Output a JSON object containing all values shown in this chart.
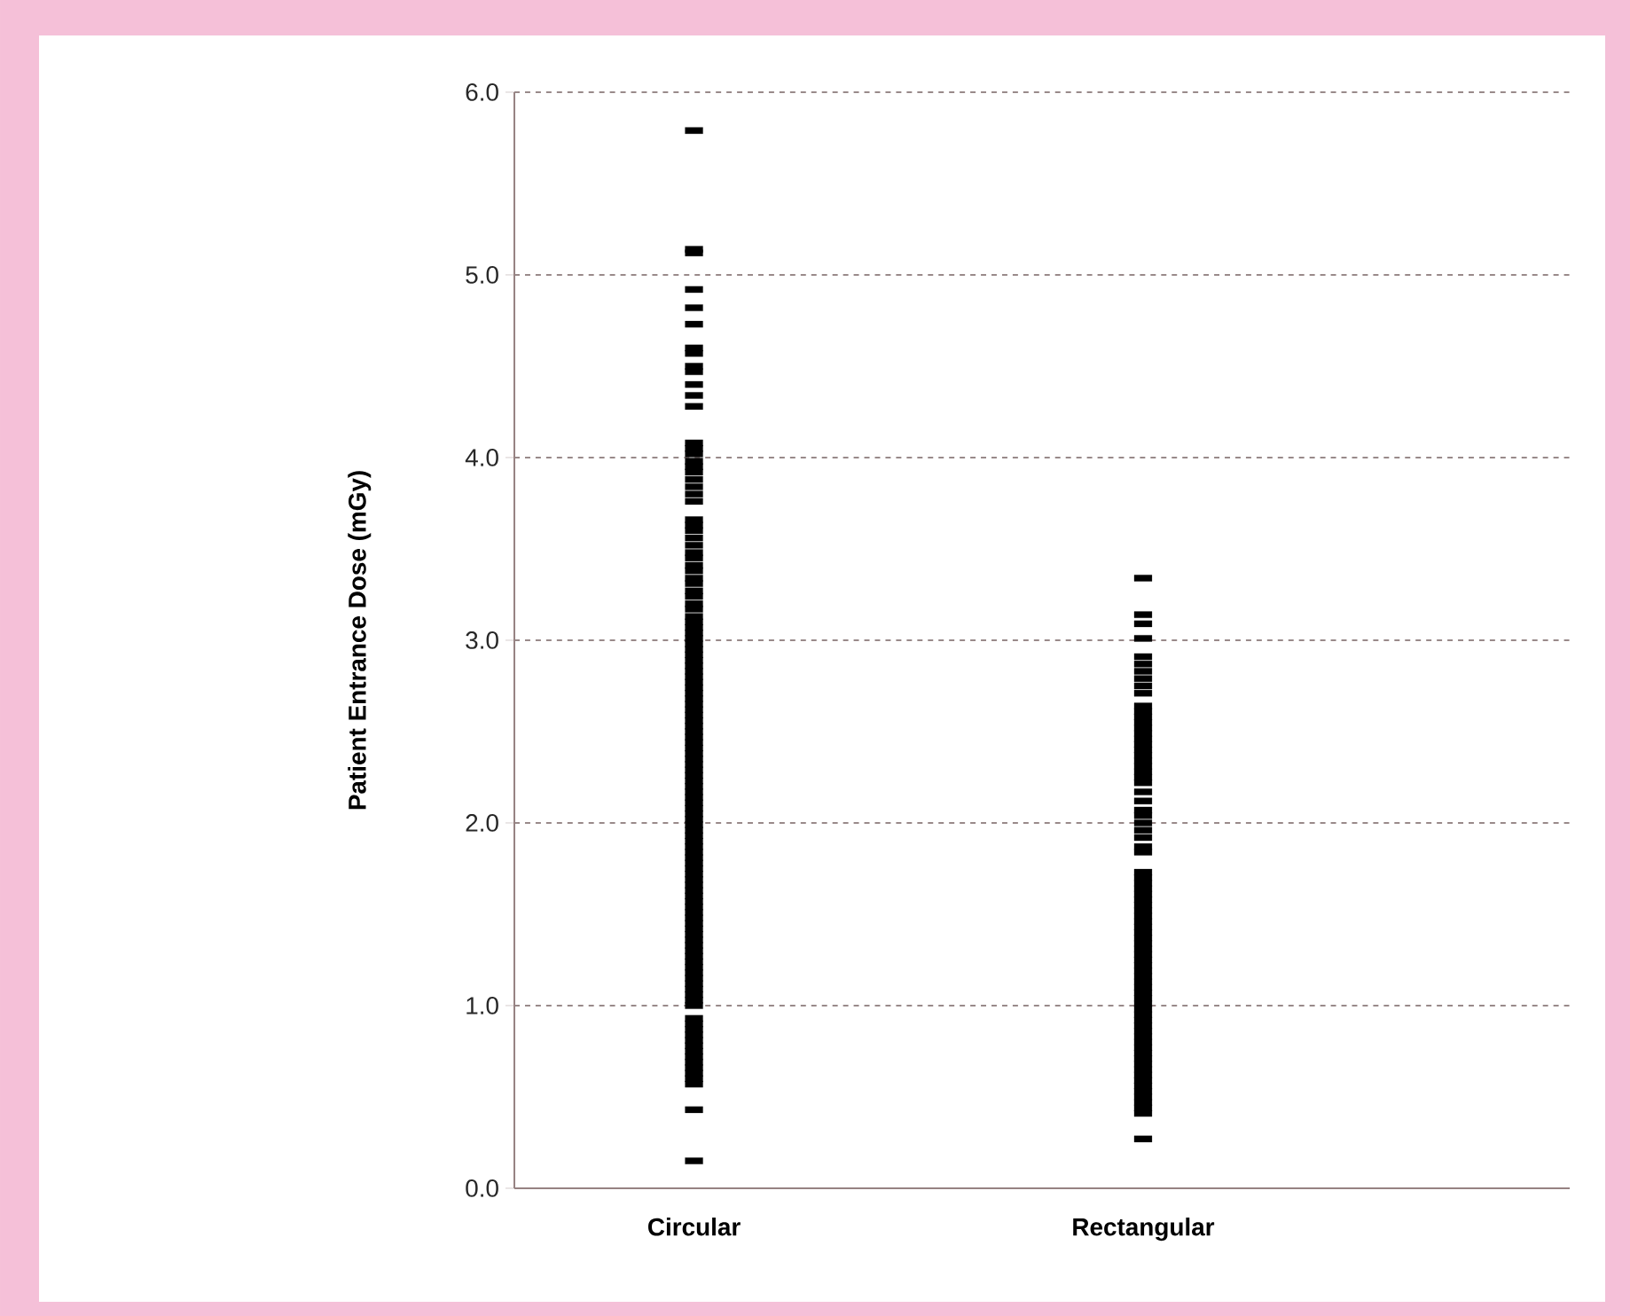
{
  "chart_data": {
    "type": "scatter",
    "ylabel": "Patient Entrance Dose (mGy)",
    "categories": [
      "Circular",
      "Rectangular"
    ],
    "ylim": [
      0,
      6
    ],
    "yticks": [
      {
        "value": 0,
        "label": "0.0"
      },
      {
        "value": 1,
        "label": "1.0"
      },
      {
        "value": 2,
        "label": "2.0"
      },
      {
        "value": 3,
        "label": "3.0"
      },
      {
        "value": 4,
        "label": "4.0"
      },
      {
        "value": 5,
        "label": "5.0"
      },
      {
        "value": 6,
        "label": "6.0"
      }
    ],
    "grid": "y",
    "series": [
      {
        "color": "#000000",
        "x": [
          "Circular",
          "Circular",
          "Circular",
          "Circular",
          "Circular",
          "Circular",
          "Circular",
          "Circular",
          "Circular",
          "Circular",
          "Circular",
          "Circular",
          "Circular",
          "Circular",
          "Circular",
          "Circular",
          "Circular",
          "Circular",
          "Circular",
          "Circular",
          "Circular",
          "Circular",
          "Circular",
          "Circular",
          "Circular",
          "Circular",
          "Circular",
          "Circular",
          "Circular",
          "Circular",
          "Circular",
          "Circular",
          "Circular",
          "Circular",
          "Circular",
          "Circular",
          "Circular",
          "Circular",
          "Circular",
          "Circular",
          "Circular",
          "Circular",
          "Circular",
          "Circular",
          "Circular",
          "Circular",
          "Circular",
          "Circular",
          "Circular",
          "Circular",
          "Circular",
          "Circular",
          "Circular",
          "Circular",
          "Circular",
          "Circular",
          "Circular",
          "Circular",
          "Circular",
          "Circular",
          "Circular",
          "Circular",
          "Circular",
          "Circular",
          "Circular",
          "Circular",
          "Circular",
          "Circular",
          "Circular",
          "Circular",
          "Circular",
          "Circular",
          "Circular",
          "Circular",
          "Circular",
          "Circular",
          "Circular",
          "Circular",
          "Circular",
          "Circular",
          "Circular",
          "Circular",
          "Circular",
          "Circular",
          "Circular",
          "Circular",
          "Circular",
          "Circular",
          "Circular",
          "Circular",
          "Circular",
          "Circular",
          "Circular",
          "Circular",
          "Circular",
          "Circular",
          "Circular",
          "Circular",
          "Circular",
          "Circular",
          "Circular",
          "Circular",
          "Circular",
          "Circular",
          "Circular",
          "Circular",
          "Circular",
          "Circular",
          "Circular",
          "Circular",
          "Circular",
          "Circular",
          "Circular",
          "Circular",
          "Circular",
          "Circular",
          "Circular",
          "Circular",
          "Circular",
          "Circular",
          "Circular",
          "Circular",
          "Circular",
          "Circular",
          "Circular"
        ],
        "values": [
          5.79,
          5.14,
          5.12,
          4.92,
          4.82,
          4.73,
          4.6,
          4.57,
          4.5,
          4.47,
          4.4,
          4.34,
          4.28,
          4.08,
          4.05,
          4.02,
          3.98,
          3.95,
          3.92,
          3.88,
          3.84,
          3.8,
          3.76,
          3.66,
          3.63,
          3.6,
          3.56,
          3.52,
          3.48,
          3.45,
          3.41,
          3.38,
          3.34,
          3.31,
          3.27,
          3.24,
          3.2,
          3.17,
          3.13,
          3.1,
          3.07,
          3.04,
          3.01,
          2.98,
          2.95,
          2.92,
          2.89,
          2.86,
          2.83,
          2.8,
          2.77,
          2.74,
          2.71,
          2.68,
          2.65,
          2.62,
          2.59,
          2.56,
          2.53,
          2.5,
          2.47,
          2.44,
          2.41,
          2.38,
          2.35,
          2.32,
          2.29,
          2.26,
          2.23,
          2.2,
          2.17,
          2.14,
          2.11,
          2.08,
          2.05,
          2.02,
          1.99,
          1.96,
          1.93,
          1.9,
          1.87,
          1.84,
          1.81,
          1.78,
          1.75,
          1.72,
          1.69,
          1.66,
          1.63,
          1.6,
          1.57,
          1.54,
          1.51,
          1.48,
          1.45,
          1.42,
          1.39,
          1.36,
          1.33,
          1.3,
          1.27,
          1.24,
          1.21,
          1.18,
          1.15,
          1.12,
          1.09,
          1.06,
          1.03,
          1.0,
          0.93,
          0.9,
          0.87,
          0.84,
          0.81,
          0.78,
          0.75,
          0.72,
          0.69,
          0.66,
          0.63,
          0.6,
          0.57,
          0.43,
          0.15
        ]
      },
      {
        "color": "#000000",
        "x": [
          "Rectangular",
          "Rectangular",
          "Rectangular",
          "Rectangular",
          "Rectangular",
          "Rectangular",
          "Rectangular",
          "Rectangular",
          "Rectangular",
          "Rectangular",
          "Rectangular",
          "Rectangular",
          "Rectangular",
          "Rectangular",
          "Rectangular",
          "Rectangular",
          "Rectangular",
          "Rectangular",
          "Rectangular",
          "Rectangular",
          "Rectangular",
          "Rectangular",
          "Rectangular",
          "Rectangular",
          "Rectangular",
          "Rectangular",
          "Rectangular",
          "Rectangular",
          "Rectangular",
          "Rectangular",
          "Rectangular",
          "Rectangular",
          "Rectangular",
          "Rectangular",
          "Rectangular",
          "Rectangular",
          "Rectangular",
          "Rectangular",
          "Rectangular",
          "Rectangular",
          "Rectangular",
          "Rectangular",
          "Rectangular",
          "Rectangular",
          "Rectangular",
          "Rectangular",
          "Rectangular",
          "Rectangular",
          "Rectangular",
          "Rectangular",
          "Rectangular",
          "Rectangular",
          "Rectangular",
          "Rectangular",
          "Rectangular",
          "Rectangular",
          "Rectangular",
          "Rectangular",
          "Rectangular",
          "Rectangular",
          "Rectangular",
          "Rectangular",
          "Rectangular",
          "Rectangular",
          "Rectangular",
          "Rectangular",
          "Rectangular",
          "Rectangular",
          "Rectangular",
          "Rectangular",
          "Rectangular",
          "Rectangular",
          "Rectangular",
          "Rectangular",
          "Rectangular",
          "Rectangular",
          "Rectangular",
          "Rectangular",
          "Rectangular",
          "Rectangular"
        ],
        "values": [
          3.34,
          3.14,
          3.09,
          3.01,
          2.91,
          2.87,
          2.83,
          2.79,
          2.75,
          2.71,
          2.64,
          2.61,
          2.58,
          2.55,
          2.52,
          2.49,
          2.46,
          2.43,
          2.4,
          2.37,
          2.34,
          2.31,
          2.28,
          2.25,
          2.22,
          2.17,
          2.12,
          2.07,
          2.04,
          2.0,
          1.96,
          1.92,
          1.87,
          1.84,
          1.73,
          1.7,
          1.67,
          1.64,
          1.61,
          1.58,
          1.55,
          1.52,
          1.49,
          1.46,
          1.43,
          1.4,
          1.37,
          1.34,
          1.31,
          1.28,
          1.25,
          1.22,
          1.19,
          1.16,
          1.13,
          1.1,
          1.07,
          1.04,
          1.01,
          0.98,
          0.95,
          0.92,
          0.89,
          0.86,
          0.83,
          0.8,
          0.77,
          0.74,
          0.71,
          0.68,
          0.65,
          0.62,
          0.59,
          0.56,
          0.53,
          0.5,
          0.47,
          0.44,
          0.41,
          0.27
        ]
      }
    ]
  }
}
